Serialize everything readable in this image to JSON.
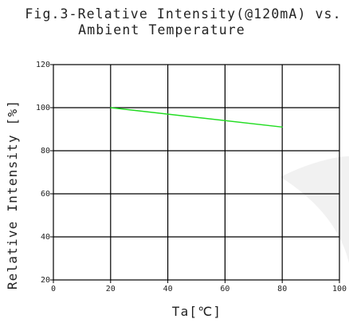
{
  "chart_data": {
    "type": "line",
    "title_lines": [
      "Fig.3-Relative Intensity(@120mA) vs.",
      "Ambient Temperature"
    ],
    "xlabel": "Ta[℃]",
    "ylabel": "Relative Intensity [%]",
    "xlim": [
      0,
      100
    ],
    "ylim": [
      20,
      120
    ],
    "xticks": [
      0,
      20,
      40,
      60,
      80,
      100
    ],
    "yticks": [
      20,
      40,
      60,
      80,
      100,
      120
    ],
    "grid": true,
    "series": [
      {
        "color": "#22dd22",
        "x": [
          20,
          80
        ],
        "y": [
          100,
          91
        ]
      }
    ]
  }
}
